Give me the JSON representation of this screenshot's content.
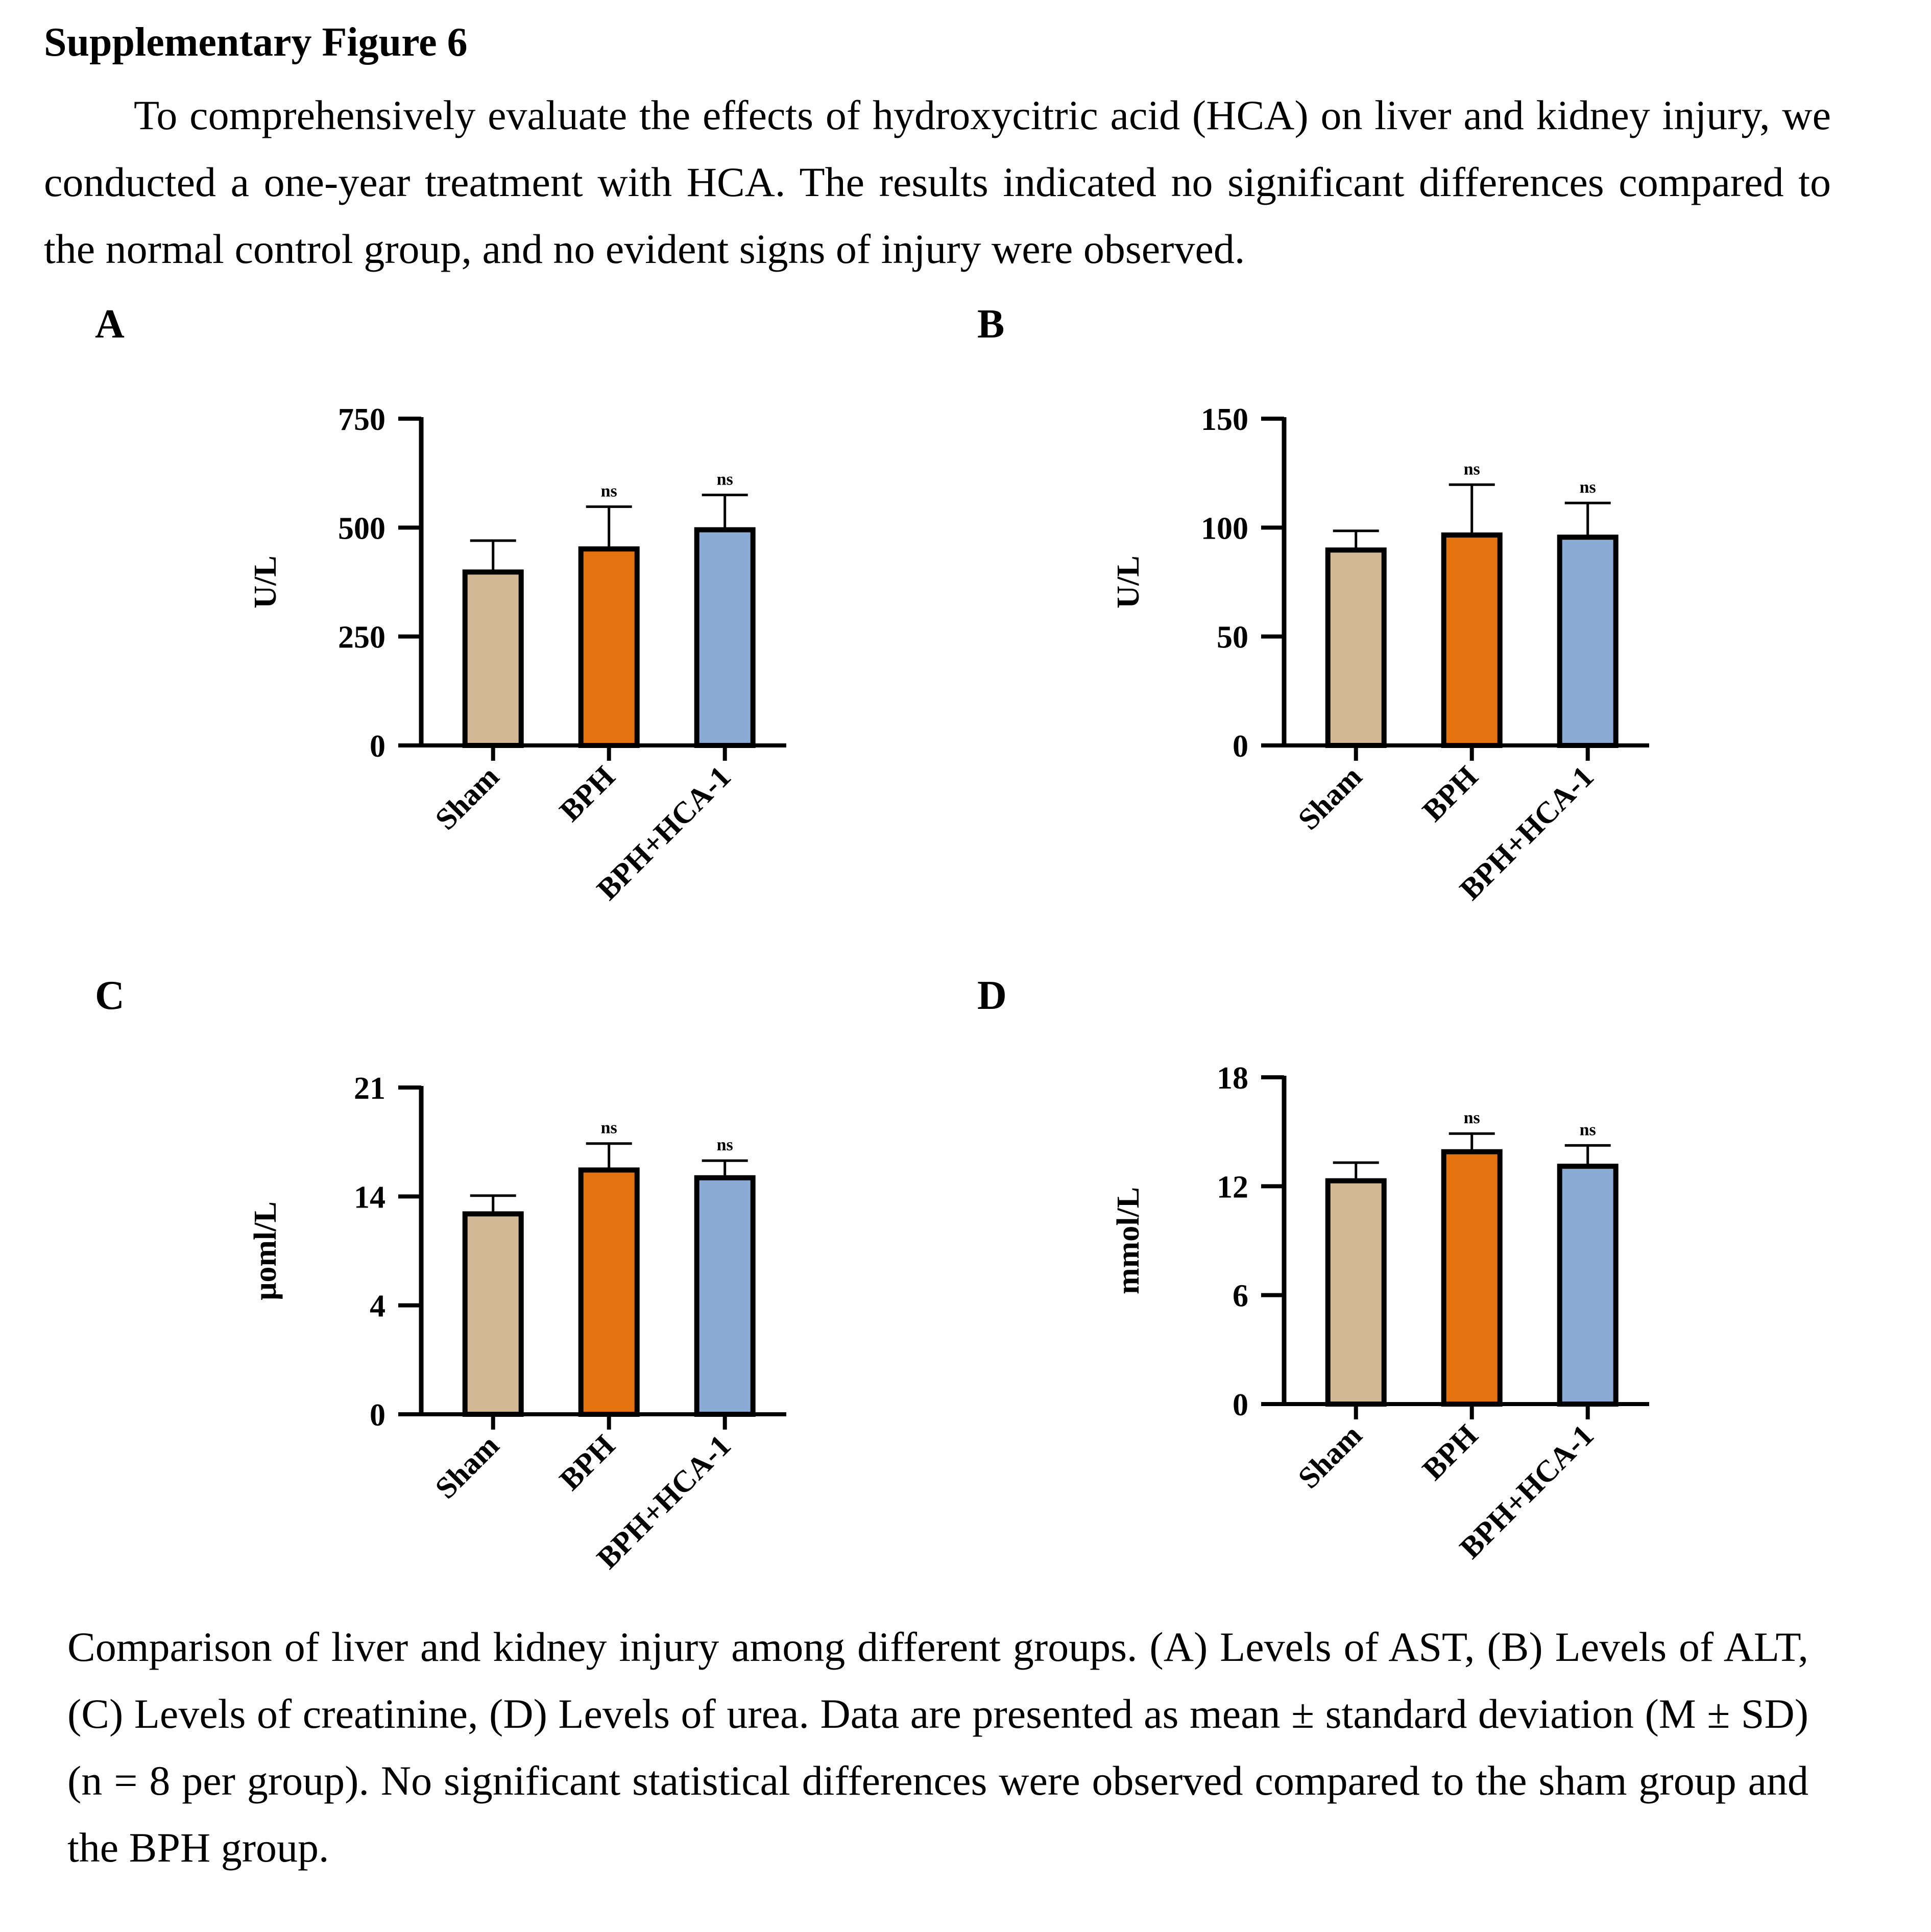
{
  "title": "Supplementary Figure 6",
  "intro": "To comprehensively evaluate the effects of hydroxycitric acid (HCA) on liver and kidney injury, we conducted a one-year treatment with HCA. The results indicated no significant differences compared to the normal control group, and no evident signs of injury were observed.",
  "panels": {
    "A": "A",
    "B": "B",
    "C": "C",
    "D": "D"
  },
  "caption": "Comparison of liver and kidney injury among different groups. (A) Levels of AST, (B) Levels of ALT, (C) Levels of creatinine, (D) Levels of urea. Data are presented as mean ± standard deviation (M ± SD) (n = 8 per group). No significant statistical differences were observed compared to the sham group and the BPH group.",
  "colors": {
    "Sham": "#d3b896",
    "BPH": "#e3720f",
    "BPH+HCA-1": "#8aabd3"
  },
  "chart_data": [
    {
      "panel": "A",
      "type": "bar",
      "title": "Levels of AST",
      "categories": [
        "Sham",
        "BPH",
        "BPH+HCA-1"
      ],
      "values": [
        398,
        451,
        495
      ],
      "error_upper": [
        470,
        548,
        575
      ],
      "annotations": [
        "",
        "ns",
        "ns"
      ],
      "ylabel": "U/L",
      "xlabel": "",
      "yticks": [
        0,
        250,
        500,
        750
      ],
      "ylim": [
        0,
        750
      ],
      "grid": false
    },
    {
      "panel": "B",
      "type": "bar",
      "title": "Levels of ALT",
      "categories": [
        "Sham",
        "BPH",
        "BPH+HCA-1"
      ],
      "values": [
        89.7,
        96.6,
        95.6
      ],
      "error_upper": [
        98.5,
        119.7,
        111.3
      ],
      "annotations": [
        "",
        "ns",
        "ns"
      ],
      "ylabel": "U/L",
      "xlabel": "",
      "yticks": [
        0,
        50,
        100,
        150
      ],
      "ylim": [
        0,
        150
      ],
      "grid": false
    },
    {
      "panel": "C",
      "type": "bar",
      "title": "Levels of creatinine",
      "categories": [
        "Sham",
        "BPH",
        "BPH+HCA-1"
      ],
      "values": [
        12.4,
        15.7,
        15.2
      ],
      "error_upper": [
        14.05,
        17.4,
        16.3
      ],
      "annotations": [
        "",
        "ns",
        "ns"
      ],
      "ylabel": "μoml/L",
      "xlabel": "",
      "yticks": [
        0,
        4,
        14,
        21
      ],
      "ylim": [
        0,
        21
      ],
      "grid": false,
      "note": "tick labels are equally spaced (non-linear axis)"
    },
    {
      "panel": "D",
      "type": "bar",
      "title": "Levels of urea",
      "categories": [
        "Sham",
        "BPH",
        "BPH+HCA-1"
      ],
      "values": [
        12.3,
        13.9,
        13.1
      ],
      "error_upper": [
        13.3,
        14.9,
        14.25
      ],
      "annotations": [
        "",
        "ns",
        "ns"
      ],
      "ylabel": "mmol/L",
      "xlabel": "",
      "yticks": [
        0,
        6,
        12,
        18
      ],
      "ylim": [
        0,
        18
      ],
      "grid": false
    }
  ]
}
